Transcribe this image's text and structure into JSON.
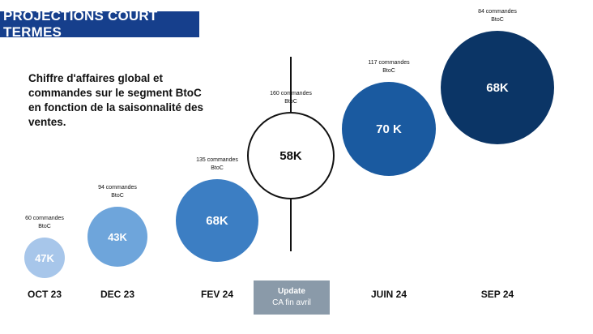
{
  "header": {
    "title": "PROJECTIONS COURT TERMES"
  },
  "description": "Chiffre d'affaires global et\ncommandes sur le segment BtoC\nen fonction de la saisonnalité des\nventes.",
  "update_box": {
    "line1": "Update",
    "line2": "CA fin avril"
  },
  "colors": {
    "badge": "#163f8c",
    "update_box": "#8a9aa9",
    "text": "#111111"
  },
  "chart_data": {
    "type": "bubble",
    "title": "",
    "categories": [
      "OCT 23",
      "DEC 23",
      "FEV 24",
      "",
      "JUIN 24",
      "SEP 24"
    ],
    "points": [
      {
        "category": "OCT 23",
        "revenue_label": "47K",
        "revenue_k": 47,
        "orders": 60,
        "orders_label": "60 commandes",
        "segment_label": "BtoC",
        "fill": "#a7c6ea",
        "text_color": "#ffffff",
        "outline": false
      },
      {
        "category": "DEC 23",
        "revenue_label": "43K",
        "revenue_k": 43,
        "orders": 94,
        "orders_label": "94 commandes",
        "segment_label": "BtoC",
        "fill": "#6ea5db",
        "text_color": "#ffffff",
        "outline": false
      },
      {
        "category": "FEV 24",
        "revenue_label": "68K",
        "revenue_k": 68,
        "orders": 135,
        "orders_label": "135 commandes",
        "segment_label": "BtoC",
        "fill": "#3c7ec3",
        "text_color": "#ffffff",
        "outline": false
      },
      {
        "category": "",
        "revenue_label": "58K",
        "revenue_k": 58,
        "orders": 160,
        "orders_label": "160 commandes",
        "segment_label": "BtoC",
        "fill": "#ffffff",
        "text_color": "#111111",
        "outline": true
      },
      {
        "category": "JUIN 24",
        "revenue_label": "70 K",
        "revenue_k": 70,
        "orders": 117,
        "orders_label": "117 commandes",
        "segment_label": "BtoC",
        "fill": "#1a5aa0",
        "text_color": "#ffffff",
        "outline": false
      },
      {
        "category": "SEP 24",
        "revenue_label": "68K",
        "revenue_k": 68,
        "orders": 84,
        "orders_label": "84 commandes",
        "segment_label": "BtoC",
        "fill": "#0b3566",
        "text_color": "#ffffff",
        "outline": false
      }
    ]
  }
}
